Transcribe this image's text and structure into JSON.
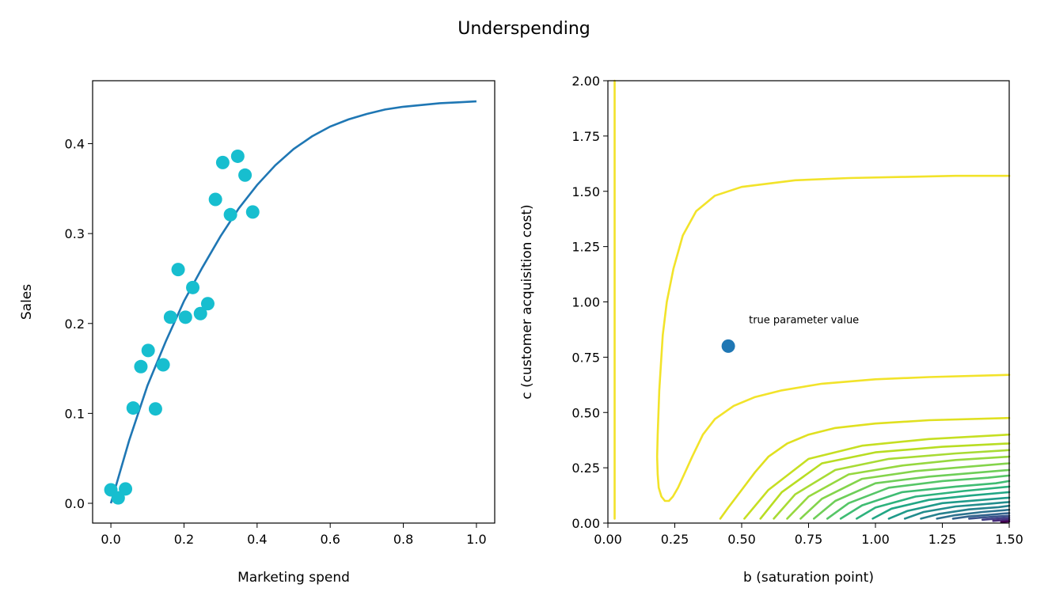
{
  "suptitle": "Underspending",
  "chart_data": [
    {
      "type": "scatter",
      "xlabel": "Marketing spend",
      "ylabel": "Sales",
      "xlim": [
        -0.05,
        1.05
      ],
      "ylim": [
        -0.022,
        0.47
      ],
      "xticks": [
        0.0,
        0.2,
        0.4,
        0.6,
        0.8,
        1.0
      ],
      "xtick_labels": [
        "0.0",
        "0.2",
        "0.4",
        "0.6",
        "0.8",
        "1.0"
      ],
      "yticks": [
        0.0,
        0.1,
        0.2,
        0.3,
        0.4
      ],
      "ytick_labels": [
        "0.0",
        "0.1",
        "0.2",
        "0.3",
        "0.4"
      ],
      "grid": false,
      "colors": {
        "curve": "#1f77b4",
        "points": "#17becf"
      },
      "curve": {
        "x": [
          0.0,
          0.05,
          0.1,
          0.15,
          0.2,
          0.25,
          0.3,
          0.35,
          0.4,
          0.45,
          0.5,
          0.55,
          0.6,
          0.65,
          0.7,
          0.75,
          0.8,
          0.85,
          0.9,
          0.95,
          1.0
        ],
        "y": [
          0.0,
          0.07,
          0.131,
          0.18,
          0.225,
          0.262,
          0.297,
          0.328,
          0.354,
          0.376,
          0.394,
          0.408,
          0.419,
          0.427,
          0.433,
          0.438,
          0.441,
          0.443,
          0.445,
          0.446,
          0.447
        ]
      },
      "points": {
        "x": [
          0.0,
          0.02,
          0.04,
          0.061,
          0.082,
          0.102,
          0.122,
          0.143,
          0.163,
          0.184,
          0.204,
          0.224,
          0.245,
          0.265,
          0.286,
          0.306,
          0.327,
          0.347,
          0.367,
          0.388
        ],
        "y": [
          0.015,
          0.006,
          0.016,
          0.106,
          0.152,
          0.17,
          0.105,
          0.154,
          0.207,
          0.26,
          0.207,
          0.24,
          0.211,
          0.222,
          0.338,
          0.379,
          0.321,
          0.386,
          0.365,
          0.324
        ]
      }
    },
    {
      "type": "contour",
      "xlabel": "b (saturation point)",
      "ylabel": "c (customer acquisition cost)",
      "xlim": [
        0.0,
        1.5
      ],
      "ylim": [
        0.0,
        2.0
      ],
      "xticks": [
        0.0,
        0.25,
        0.5,
        0.75,
        1.0,
        1.25,
        1.5
      ],
      "xtick_labels": [
        "0.00",
        "0.25",
        "0.50",
        "0.75",
        "1.00",
        "1.25",
        "1.50"
      ],
      "yticks": [
        0.0,
        0.25,
        0.5,
        0.75,
        1.0,
        1.25,
        1.5,
        1.75,
        2.0
      ],
      "ytick_labels": [
        "0.00",
        "0.25",
        "0.50",
        "0.75",
        "1.00",
        "1.25",
        "1.50",
        "1.75",
        "2.00"
      ],
      "colormap": "viridis",
      "true_parameter": {
        "b": 0.45,
        "c": 0.8,
        "color": "#1f77b4"
      },
      "annotation": "true parameter value",
      "contours": [
        {
          "color": "#f2e32a",
          "paths": [
            {
              "b": [
                0.025,
                0.025
              ],
              "c": [
                2.0,
                0.02
              ]
            },
            {
              "b": [
                1.5,
                1.3,
                1.1,
                0.9,
                0.7,
                0.5,
                0.4,
                0.33,
                0.28,
                0.245,
                0.22,
                0.205,
                0.192,
                0.186,
                0.184,
                0.186,
                0.19,
                0.2,
                0.213,
                0.228,
                0.243,
                0.262,
                0.285,
                0.315,
                0.355,
                0.4,
                0.47,
                0.55,
                0.65,
                0.8,
                1.0,
                1.2,
                1.5
              ],
              "c": [
                1.57,
                1.57,
                1.565,
                1.56,
                1.55,
                1.52,
                1.48,
                1.41,
                1.3,
                1.15,
                1.0,
                0.85,
                0.6,
                0.4,
                0.3,
                0.22,
                0.16,
                0.12,
                0.1,
                0.1,
                0.12,
                0.16,
                0.22,
                0.3,
                0.4,
                0.47,
                0.53,
                0.57,
                0.6,
                0.63,
                0.65,
                0.66,
                0.67
              ]
            }
          ]
        },
        {
          "color": "#e0e020",
          "paths": [
            {
              "b": [
                0.42,
                0.45,
                0.5,
                0.55,
                0.6,
                0.67,
                0.75,
                0.85,
                1.0,
                1.2,
                1.5
              ],
              "c": [
                0.02,
                0.07,
                0.15,
                0.23,
                0.3,
                0.36,
                0.4,
                0.43,
                0.45,
                0.465,
                0.475
              ]
            }
          ]
        },
        {
          "color": "#c6df22",
          "paths": [
            {
              "b": [
                0.51,
                0.6,
                0.75,
                0.95,
                1.2,
                1.5
              ],
              "c": [
                0.02,
                0.15,
                0.29,
                0.35,
                0.38,
                0.4
              ]
            }
          ]
        },
        {
          "color": "#b8dd22",
          "paths": [
            {
              "b": [
                0.57,
                0.65,
                0.8,
                1.0,
                1.25,
                1.5
              ],
              "c": [
                0.02,
                0.14,
                0.27,
                0.32,
                0.345,
                0.36
              ]
            }
          ]
        },
        {
          "color": "#a8db34",
          "paths": [
            {
              "b": [
                0.62,
                0.7,
                0.85,
                1.05,
                1.3,
                1.5
              ],
              "c": [
                0.02,
                0.13,
                0.24,
                0.29,
                0.315,
                0.33
              ]
            }
          ]
        },
        {
          "color": "#96d83f",
          "paths": [
            {
              "b": [
                0.67,
                0.75,
                0.9,
                1.1,
                1.3,
                1.5
              ],
              "c": [
                0.02,
                0.12,
                0.22,
                0.26,
                0.285,
                0.3
              ]
            }
          ]
        },
        {
          "color": "#84d44b",
          "paths": [
            {
              "b": [
                0.72,
                0.8,
                0.95,
                1.15,
                1.35,
                1.5
              ],
              "c": [
                0.02,
                0.11,
                0.2,
                0.235,
                0.255,
                0.27
              ]
            }
          ]
        },
        {
          "color": "#6ece58",
          "paths": [
            {
              "b": [
                0.77,
                0.85,
                1.0,
                1.2,
                1.4,
                1.5
              ],
              "c": [
                0.02,
                0.1,
                0.18,
                0.21,
                0.23,
                0.24
              ]
            }
          ]
        },
        {
          "color": "#56c667",
          "paths": [
            {
              "b": [
                0.82,
                0.9,
                1.05,
                1.25,
                1.42,
                1.5
              ],
              "c": [
                0.02,
                0.09,
                0.16,
                0.19,
                0.205,
                0.215
              ]
            }
          ]
        },
        {
          "color": "#3fbc73",
          "paths": [
            {
              "b": [
                0.87,
                0.95,
                1.1,
                1.3,
                1.45,
                1.5
              ],
              "c": [
                0.02,
                0.08,
                0.14,
                0.165,
                0.18,
                0.19
              ]
            }
          ]
        },
        {
          "color": "#2db27d",
          "paths": [
            {
              "b": [
                0.93,
                1.0,
                1.15,
                1.33,
                1.5
              ],
              "c": [
                0.02,
                0.07,
                0.12,
                0.145,
                0.165
              ]
            }
          ]
        },
        {
          "color": "#21a685",
          "paths": [
            {
              "b": [
                0.99,
                1.06,
                1.2,
                1.36,
                1.5
              ],
              "c": [
                0.02,
                0.065,
                0.105,
                0.125,
                0.14
              ]
            }
          ]
        },
        {
          "color": "#1f9a8a",
          "paths": [
            {
              "b": [
                1.05,
                1.12,
                1.25,
                1.4,
                1.5
              ],
              "c": [
                0.02,
                0.055,
                0.09,
                0.105,
                0.115
              ]
            }
          ]
        },
        {
          "color": "#228d8d",
          "paths": [
            {
              "b": [
                1.11,
                1.18,
                1.3,
                1.43,
                1.5
              ],
              "c": [
                0.02,
                0.05,
                0.075,
                0.088,
                0.095
              ]
            }
          ]
        },
        {
          "color": "#26818e",
          "paths": [
            {
              "b": [
                1.17,
                1.24,
                1.35,
                1.46,
                1.5
              ],
              "c": [
                0.02,
                0.042,
                0.062,
                0.072,
                0.078
              ]
            }
          ]
        },
        {
          "color": "#2c728e",
          "paths": [
            {
              "b": [
                1.23,
                1.3,
                1.4,
                1.5
              ],
              "c": [
                0.02,
                0.036,
                0.05,
                0.06
              ]
            }
          ]
        },
        {
          "color": "#33638d",
          "paths": [
            {
              "b": [
                1.29,
                1.35,
                1.43,
                1.5
              ],
              "c": [
                0.02,
                0.03,
                0.038,
                0.045
              ]
            }
          ]
        },
        {
          "color": "#3b528b",
          "paths": [
            {
              "b": [
                1.35,
                1.4,
                1.46,
                1.5
              ],
              "c": [
                0.02,
                0.025,
                0.03,
                0.033
              ]
            }
          ]
        },
        {
          "color": "#433e85",
          "paths": [
            {
              "b": [
                1.4,
                1.45,
                1.5
              ],
              "c": [
                0.015,
                0.02,
                0.024
              ]
            }
          ]
        },
        {
          "color": "#472c7a",
          "paths": [
            {
              "b": [
                1.44,
                1.47,
                1.5
              ],
              "c": [
                0.01,
                0.013,
                0.016
              ]
            }
          ]
        },
        {
          "color": "#440154",
          "paths": [
            {
              "b": [
                1.47,
                1.5
              ],
              "c": [
                0.005,
                0.008
              ]
            }
          ]
        }
      ]
    }
  ]
}
